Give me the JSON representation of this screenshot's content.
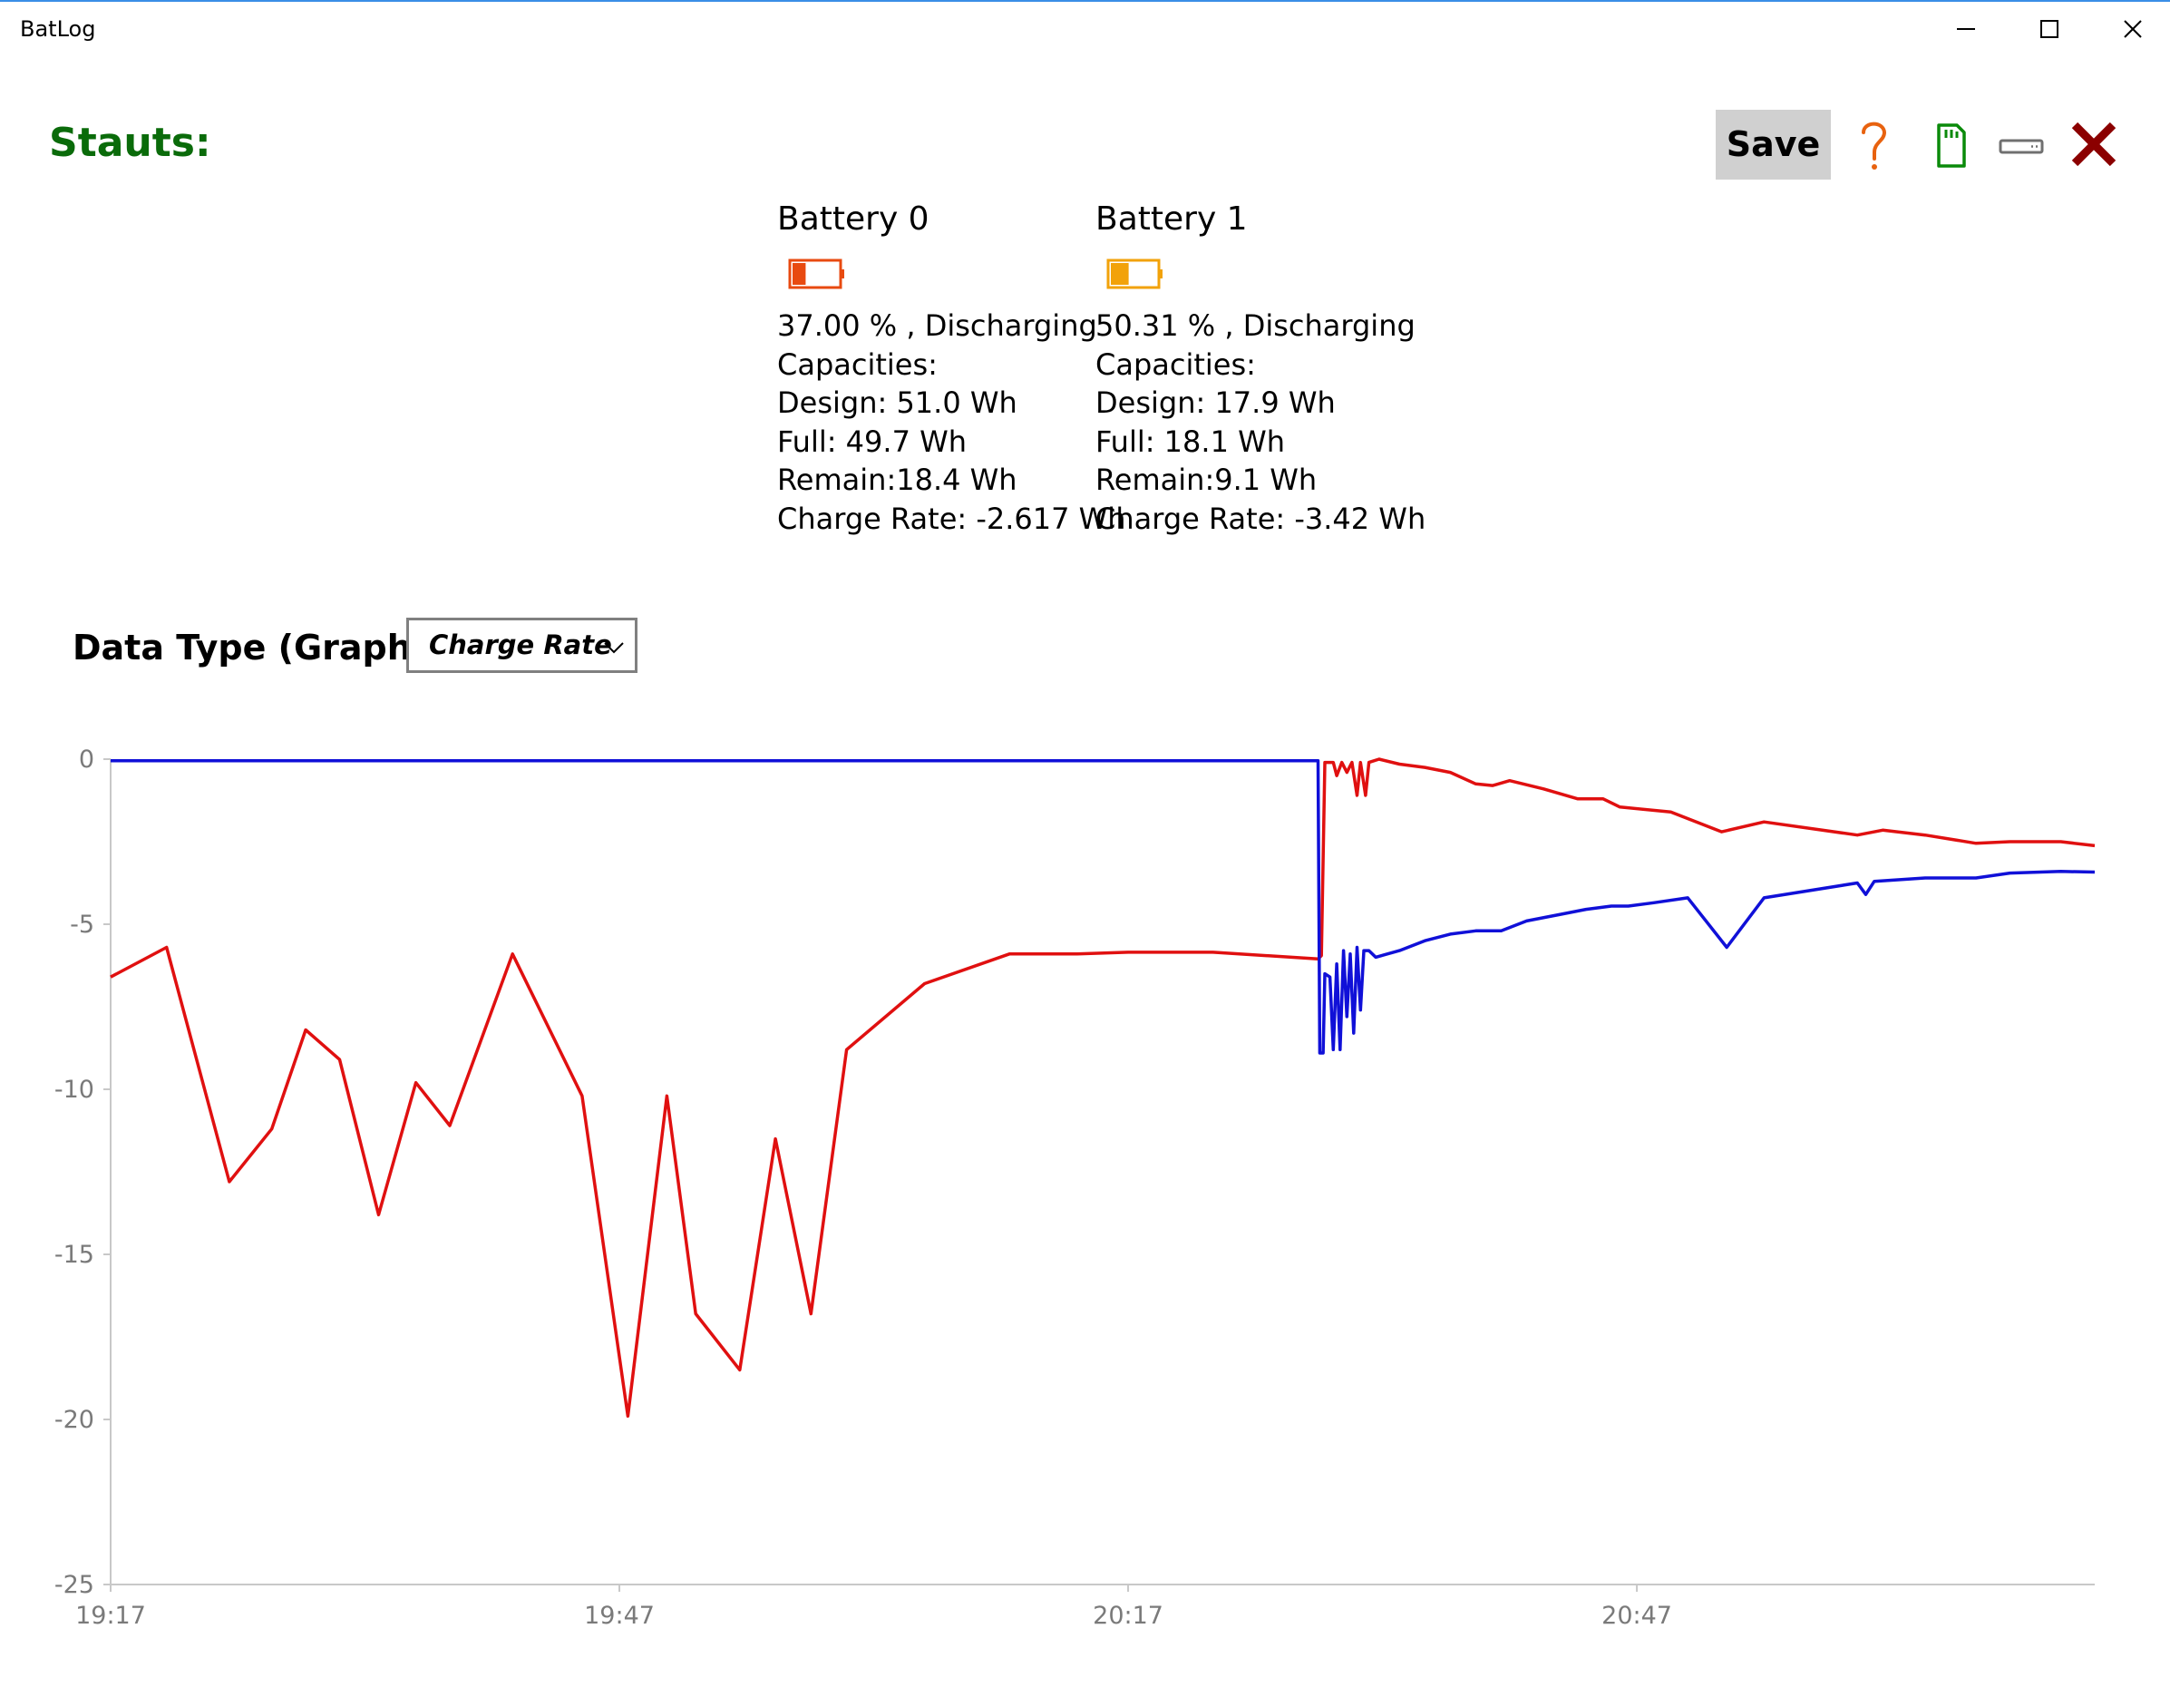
{
  "window": {
    "title": "BatLog",
    "controls": [
      "minimize-icon",
      "maximize-icon",
      "close-icon"
    ]
  },
  "header": {
    "status_label": "Stauts:",
    "save_label": "Save",
    "icons": [
      "help-icon",
      "sd-card-icon",
      "drive-icon",
      "exit-icon"
    ],
    "colors": {
      "status": "#0a6b0a",
      "help": "#e8620f",
      "sd_card": "#0a8a0a",
      "exit": "#8b0000"
    }
  },
  "batteries": [
    {
      "title": "Battery 0",
      "level": 0.37,
      "icon_color": "#e84a10",
      "status": "37.00 % , Discharging",
      "capacities_label": "Capacities:",
      "design": "Design: 51.0 Wh",
      "full": "Full: 49.7 Wh",
      "remain": "Remain:18.4 Wh",
      "charge_rate": "Charge Rate: -2.617 Wh"
    },
    {
      "title": "Battery 1",
      "level": 0.5031,
      "icon_color": "#f2a20a",
      "status": "50.31 % , Discharging",
      "capacities_label": "Capacities:",
      "design": "Design: 17.9 Wh",
      "full": "Full: 18.1 Wh",
      "remain": "Remain:9.1 Wh",
      "charge_rate": "Charge Rate: -3.42 Wh"
    }
  ],
  "data_type": {
    "label": "Data Type (Graph)",
    "selected": "Charge Rate"
  },
  "chart_data": {
    "type": "line",
    "ylim": [
      -25,
      0
    ],
    "yticks": [
      0,
      -5,
      -10,
      -15,
      -20,
      -25
    ],
    "xlim_minutes": [
      0,
      117
    ],
    "xticks": [
      {
        "label": "19:17",
        "minute": 0
      },
      {
        "label": "19:47",
        "minute": 30
      },
      {
        "label": "20:17",
        "minute": 60
      },
      {
        "label": "20:47",
        "minute": 90
      }
    ],
    "grid": false,
    "series": [
      {
        "color": "#e01010",
        "points": [
          [
            0,
            -6.6
          ],
          [
            3.3,
            -5.7
          ],
          [
            7,
            -12.8
          ],
          [
            9.5,
            -11.2
          ],
          [
            11.5,
            -8.2
          ],
          [
            13.5,
            -9.1
          ],
          [
            15.8,
            -13.8
          ],
          [
            18,
            -9.8
          ],
          [
            20,
            -11.1
          ],
          [
            23.7,
            -5.9
          ],
          [
            27.8,
            -10.2
          ],
          [
            30.5,
            -19.9
          ],
          [
            32.8,
            -10.2
          ],
          [
            34.5,
            -16.8
          ],
          [
            37.1,
            -18.5
          ],
          [
            39.2,
            -11.5
          ],
          [
            41.3,
            -16.8
          ],
          [
            43.4,
            -8.8
          ],
          [
            48,
            -6.8
          ],
          [
            53,
            -5.9
          ],
          [
            57,
            -5.9
          ],
          [
            60,
            -5.85
          ],
          [
            65,
            -5.85
          ],
          [
            71.2,
            -6.05
          ],
          [
            71.4,
            -5.95
          ],
          [
            71.6,
            -0.1
          ],
          [
            72.1,
            -0.1
          ],
          [
            72.3,
            -0.5
          ],
          [
            72.6,
            -0.1
          ],
          [
            72.9,
            -0.4
          ],
          [
            73.2,
            -0.1
          ],
          [
            73.5,
            -1.1
          ],
          [
            73.7,
            -0.1
          ],
          [
            74,
            -1.1
          ],
          [
            74.2,
            -0.1
          ],
          [
            74.8,
            0
          ],
          [
            76,
            -0.15
          ],
          [
            77.5,
            -0.25
          ],
          [
            79,
            -0.4
          ],
          [
            80.5,
            -0.75
          ],
          [
            81.5,
            -0.8
          ],
          [
            82.5,
            -0.65
          ],
          [
            84.5,
            -0.9
          ],
          [
            86.5,
            -1.2
          ],
          [
            88,
            -1.2
          ],
          [
            89,
            -1.45
          ],
          [
            92,
            -1.6
          ],
          [
            95,
            -2.2
          ],
          [
            97.5,
            -1.9
          ],
          [
            103,
            -2.3
          ],
          [
            104.5,
            -2.15
          ],
          [
            107,
            -2.3
          ],
          [
            110,
            -2.55
          ],
          [
            112,
            -2.5
          ],
          [
            115,
            -2.5
          ],
          [
            117,
            -2.62
          ]
        ]
      },
      {
        "color": "#1010d8",
        "points": [
          [
            0,
            -0.05
          ],
          [
            10,
            -0.05
          ],
          [
            20,
            -0.05
          ],
          [
            30,
            -0.05
          ],
          [
            40,
            -0.05
          ],
          [
            50,
            -0.05
          ],
          [
            60,
            -0.05
          ],
          [
            71.2,
            -0.05
          ],
          [
            71.3,
            -8.9
          ],
          [
            71.5,
            -8.9
          ],
          [
            71.6,
            -6.5
          ],
          [
            71.9,
            -6.6
          ],
          [
            72.1,
            -8.8
          ],
          [
            72.3,
            -6.2
          ],
          [
            72.5,
            -8.8
          ],
          [
            72.7,
            -5.8
          ],
          [
            72.9,
            -7.8
          ],
          [
            73.1,
            -5.9
          ],
          [
            73.3,
            -8.3
          ],
          [
            73.5,
            -5.7
          ],
          [
            73.7,
            -7.6
          ],
          [
            73.9,
            -5.8
          ],
          [
            74.2,
            -5.8
          ],
          [
            74.6,
            -6
          ],
          [
            76,
            -5.8
          ],
          [
            77.5,
            -5.5
          ],
          [
            79,
            -5.3
          ],
          [
            80.5,
            -5.2
          ],
          [
            82,
            -5.2
          ],
          [
            83.5,
            -4.9
          ],
          [
            85.5,
            -4.7
          ],
          [
            87,
            -4.55
          ],
          [
            88.5,
            -4.45
          ],
          [
            89.5,
            -4.45
          ],
          [
            91,
            -4.35
          ],
          [
            93,
            -4.2
          ],
          [
            95.3,
            -5.7
          ],
          [
            97.5,
            -4.2
          ],
          [
            103,
            -3.75
          ],
          [
            103.5,
            -4.1
          ],
          [
            104,
            -3.7
          ],
          [
            107,
            -3.6
          ],
          [
            110,
            -3.6
          ],
          [
            112,
            -3.45
          ],
          [
            115,
            -3.4
          ],
          [
            117,
            -3.42
          ]
        ]
      }
    ]
  }
}
